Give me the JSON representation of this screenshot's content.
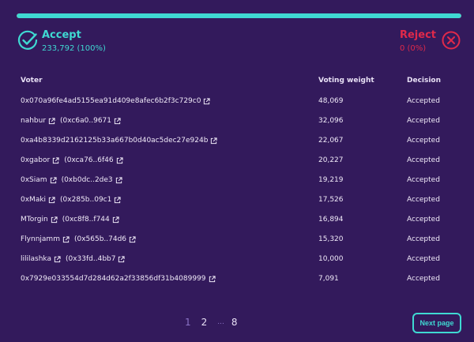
{
  "progress": {
    "accept_fraction": 1.0,
    "fill_color": "#3fd9d2",
    "track_color": "#e0294a"
  },
  "accept": {
    "title": "Accept",
    "summary": "233,792 (100%)",
    "icon": "check-circle-icon",
    "color": "#3fd9d2"
  },
  "reject": {
    "title": "Reject",
    "summary": "0 (0%)",
    "icon": "x-circle-icon",
    "color": "#e0294a"
  },
  "table": {
    "headers": {
      "voter": "Voter",
      "weight": "Voting weight",
      "decision": "Decision"
    },
    "rows": [
      {
        "voter": "0x070a96fe4ad5155ea91d409e8afec6b2f3c729c0",
        "address": "",
        "weight": "48,069",
        "decision": "Accepted"
      },
      {
        "voter": "nahbur",
        "address": "(0xc6a0..9671",
        "weight": "32,096",
        "decision": "Accepted"
      },
      {
        "voter": "0xa4b8339d2162125b33a667b0d40ac5dec27e924b",
        "address": "",
        "weight": "22,067",
        "decision": "Accepted"
      },
      {
        "voter": "0xgabor",
        "address": "(0xca76..6f46",
        "weight": "20,227",
        "decision": "Accepted"
      },
      {
        "voter": "0xSiam",
        "address": "(0xb0dc..2de3",
        "weight": "19,219",
        "decision": "Accepted"
      },
      {
        "voter": "0xMaki",
        "address": "(0x285b..09c1",
        "weight": "17,526",
        "decision": "Accepted"
      },
      {
        "voter": "MTorgin",
        "address": "(0xc8f8..f744",
        "weight": "16,894",
        "decision": "Accepted"
      },
      {
        "voter": "Flynnjamm",
        "address": "(0x565b..74d6",
        "weight": "15,320",
        "decision": "Accepted"
      },
      {
        "voter": "lililashka",
        "address": "(0x33fd..4bb7",
        "weight": "10,000",
        "decision": "Accepted"
      },
      {
        "voter": "0x7929e033554d7d284d62a2f33856df31b4089999",
        "address": "",
        "weight": "7,091",
        "decision": "Accepted"
      }
    ]
  },
  "pagination": {
    "pages": [
      "1",
      "2"
    ],
    "ellipsis": "...",
    "last": "8",
    "current": "1"
  },
  "next_button": {
    "label": "Next page"
  }
}
